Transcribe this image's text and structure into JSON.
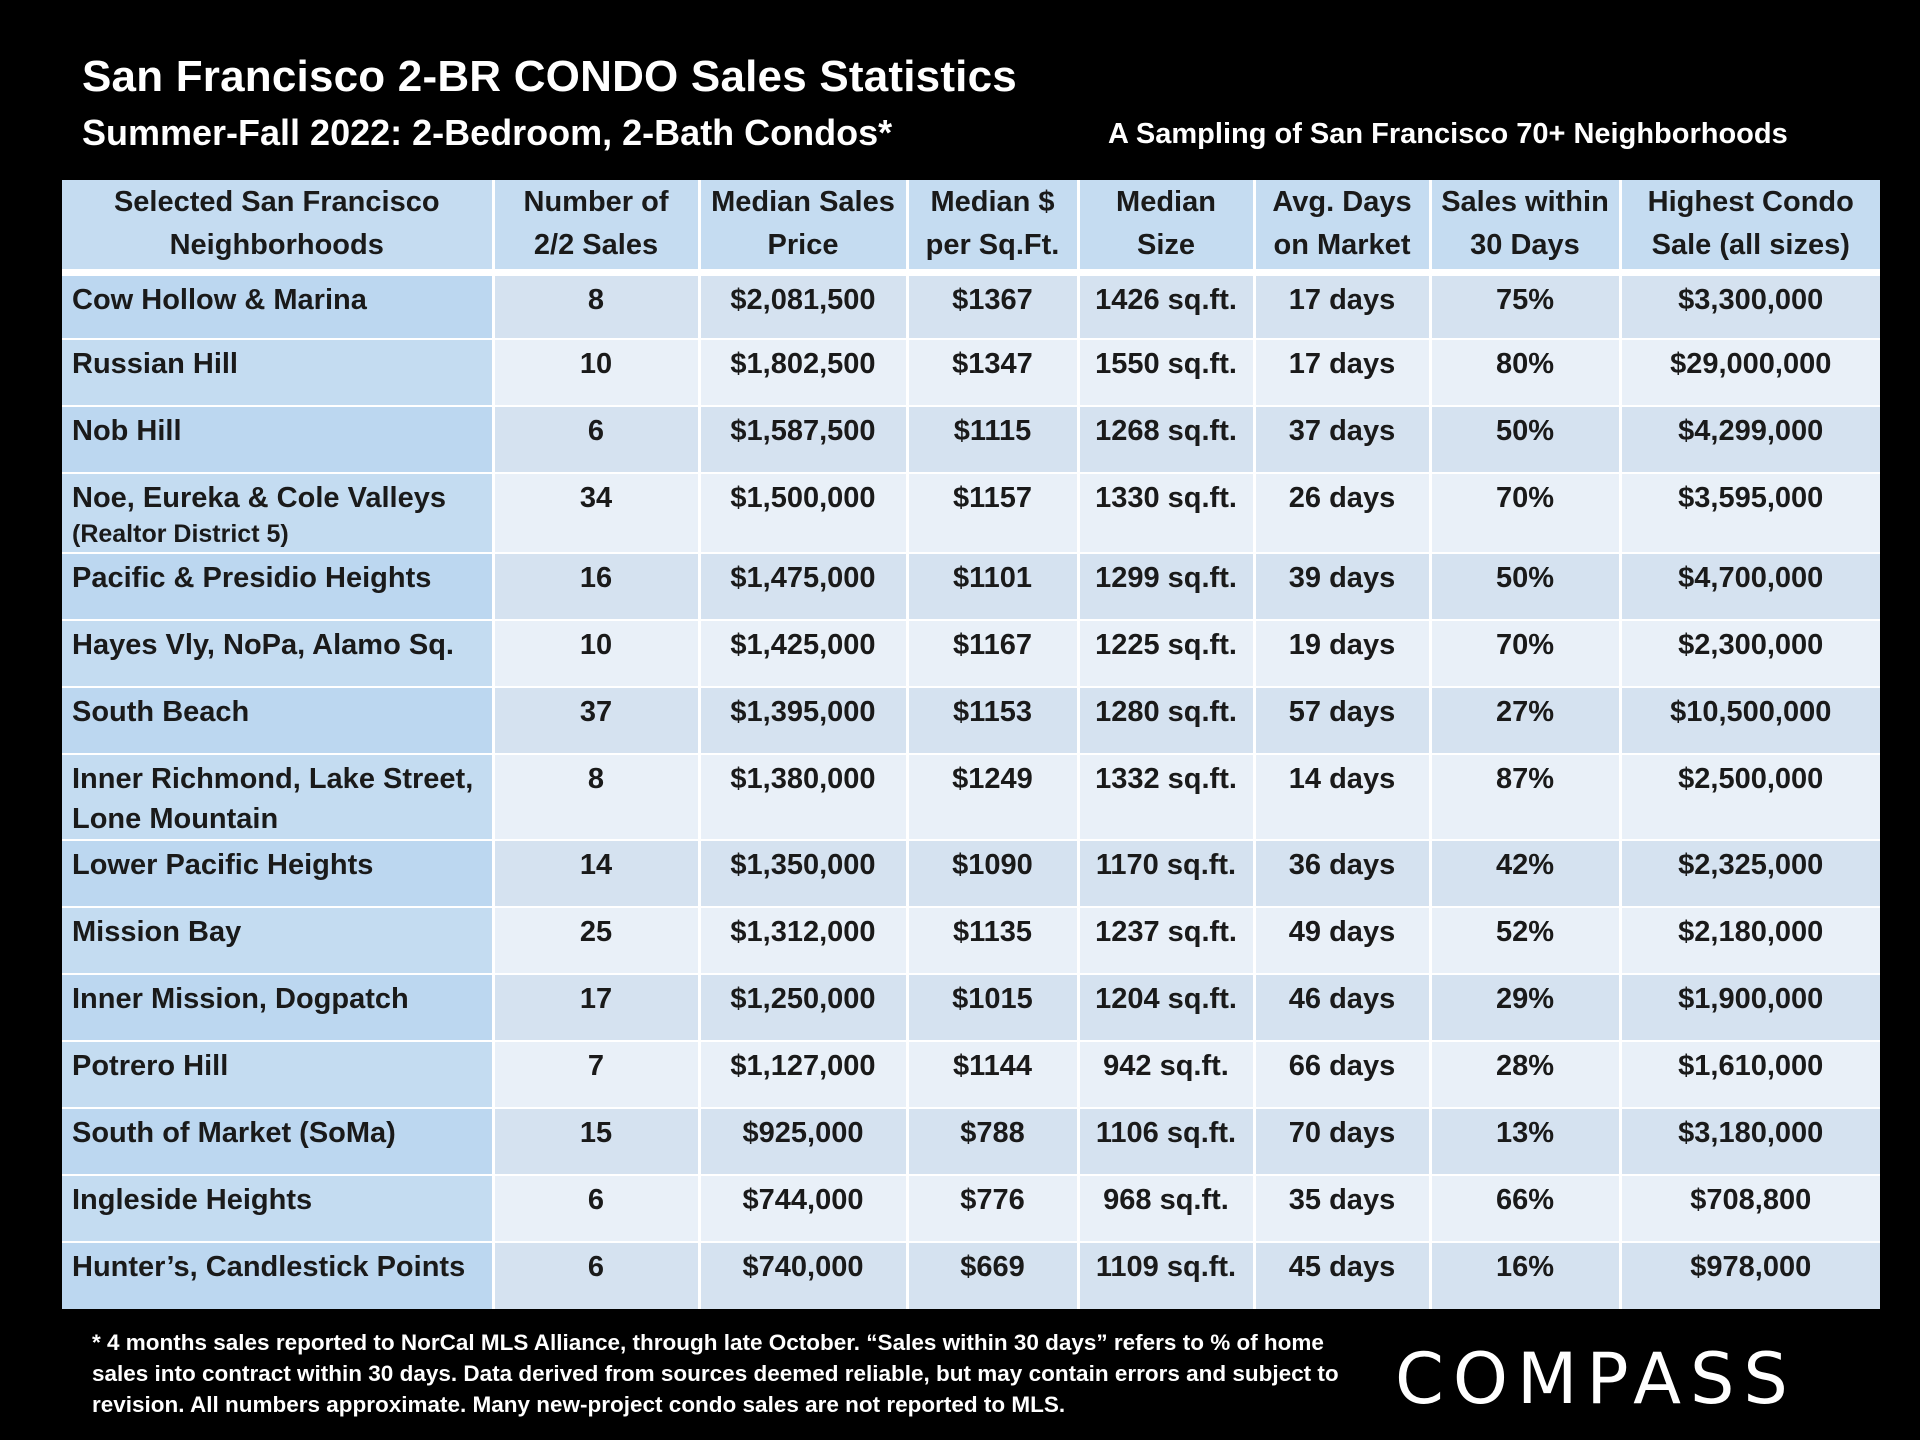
{
  "title": "San Francisco 2-BR CONDO Sales Statistics",
  "subtitle": "Summer-Fall 2022: 2-Bedroom, 2-Bath Condos*",
  "sampling_note": "A Sampling of San Francisco 70+ Neighborhoods",
  "chart_data": {
    "type": "table",
    "columns": [
      "Selected San Francisco Neighborhoods",
      "Number of 2/2 Sales",
      "Median Sales Price",
      "Median $ per Sq.Ft.",
      "Median Size",
      "Avg. Days on Market",
      "Sales within 30 Days",
      "Highest Condo Sale (all sizes)"
    ],
    "rows": [
      {
        "neighborhood": "Cow Hollow & Marina",
        "sub": "",
        "sales": "8",
        "price": "$2,081,500",
        "ppsf": "$1367",
        "size": "1426 sq.ft.",
        "dom": "17 days",
        "within30": "75%",
        "highest": "$3,300,000"
      },
      {
        "neighborhood": "Russian Hill",
        "sub": "",
        "sales": "10",
        "price": "$1,802,500",
        "ppsf": "$1347",
        "size": "1550 sq.ft.",
        "dom": "17 days",
        "within30": "80%",
        "highest": "$29,000,000"
      },
      {
        "neighborhood": "Nob Hill",
        "sub": "",
        "sales": "6",
        "price": "$1,587,500",
        "ppsf": "$1115",
        "size": "1268 sq.ft.",
        "dom": "37 days",
        "within30": "50%",
        "highest": "$4,299,000"
      },
      {
        "neighborhood": "Noe, Eureka & Cole Valleys",
        "sub": "(Realtor District 5)",
        "sales": "34",
        "price": "$1,500,000",
        "ppsf": "$1157",
        "size": "1330 sq.ft.",
        "dom": "26 days",
        "within30": "70%",
        "highest": "$3,595,000"
      },
      {
        "neighborhood": "Pacific & Presidio Heights",
        "sub": "",
        "sales": "16",
        "price": "$1,475,000",
        "ppsf": "$1101",
        "size": "1299 sq.ft.",
        "dom": "39 days",
        "within30": "50%",
        "highest": "$4,700,000"
      },
      {
        "neighborhood": "Hayes Vly, NoPa, Alamo Sq.",
        "sub": "",
        "sales": "10",
        "price": "$1,425,000",
        "ppsf": "$1167",
        "size": "1225 sq.ft.",
        "dom": "19 days",
        "within30": "70%",
        "highest": "$2,300,000"
      },
      {
        "neighborhood": "South Beach",
        "sub": "",
        "sales": "37",
        "price": "$1,395,000",
        "ppsf": "$1153",
        "size": "1280 sq.ft.",
        "dom": "57 days",
        "within30": "27%",
        "highest": "$10,500,000"
      },
      {
        "neighborhood": "Inner Richmond, Lake Street, Lone Mountain",
        "sub": "",
        "sales": "8",
        "price": "$1,380,000",
        "ppsf": "$1249",
        "size": "1332 sq.ft.",
        "dom": "14 days",
        "within30": "87%",
        "highest": "$2,500,000"
      },
      {
        "neighborhood": "Lower Pacific Heights",
        "sub": "",
        "sales": "14",
        "price": "$1,350,000",
        "ppsf": "$1090",
        "size": "1170 sq.ft.",
        "dom": "36 days",
        "within30": "42%",
        "highest": "$2,325,000"
      },
      {
        "neighborhood": "Mission Bay",
        "sub": "",
        "sales": "25",
        "price": "$1,312,000",
        "ppsf": "$1135",
        "size": "1237 sq.ft.",
        "dom": "49 days",
        "within30": "52%",
        "highest": "$2,180,000"
      },
      {
        "neighborhood": "Inner Mission, Dogpatch",
        "sub": "",
        "sales": "17",
        "price": "$1,250,000",
        "ppsf": "$1015",
        "size": "1204 sq.ft.",
        "dom": "46 days",
        "within30": "29%",
        "highest": "$1,900,000"
      },
      {
        "neighborhood": "Potrero Hill",
        "sub": "",
        "sales": "7",
        "price": "$1,127,000",
        "ppsf": "$1144",
        "size": "942 sq.ft.",
        "dom": "66 days",
        "within30": "28%",
        "highest": "$1,610,000"
      },
      {
        "neighborhood": "South of Market (SoMa)",
        "sub": "",
        "sales": "15",
        "price": "$925,000",
        "ppsf": "$788",
        "size": "1106 sq.ft.",
        "dom": "70 days",
        "within30": "13%",
        "highest": "$3,180,000"
      },
      {
        "neighborhood": "Ingleside Heights",
        "sub": "",
        "sales": "6",
        "price": "$744,000",
        "ppsf": "$776",
        "size": "968 sq.ft.",
        "dom": "35 days",
        "within30": "66%",
        "highest": "$708,800"
      },
      {
        "neighborhood": "Hunter’s, Candlestick Points",
        "sub": "",
        "sales": "6",
        "price": "$740,000",
        "ppsf": "$669",
        "size": "1109 sq.ft.",
        "dom": "45 days",
        "within30": "16%",
        "highest": "$978,000"
      }
    ]
  },
  "footnote": "* 4 months sales reported to NorCal MLS Alliance, through late October. “Sales within 30 days” refers to % of home sales into contract within 30 days. Data derived from sources deemed reliable, but may contain errors and subject to revision. All numbers approximate. Many new-project condo sales are not reported to MLS.",
  "logo_text": "COMPASS",
  "colors": {
    "background": "#000000",
    "header_fill": "#c5dcf1",
    "row_odd": "#d5e2f0",
    "row_even": "#e9f0f8",
    "first_col": "#bcd7f0"
  }
}
